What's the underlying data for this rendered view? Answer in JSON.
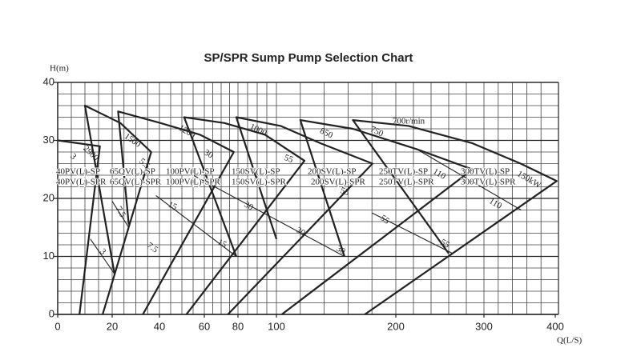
{
  "chart_data": {
    "type": "pump-selection",
    "title": "SP/SPR Sump Pump Selection Chart",
    "y_label": "H(m)",
    "x_label": "Q(L/S)",
    "xlim": [
      0,
      400
    ],
    "ylim": [
      0,
      40
    ],
    "xticks": [
      0,
      20,
      40,
      60,
      80,
      100,
      200,
      300,
      400
    ],
    "yticks": [
      0,
      10,
      20,
      30,
      40
    ],
    "xgrid": [
      5,
      10,
      15,
      20,
      25,
      30,
      35,
      40,
      45,
      50,
      55,
      60,
      65,
      70,
      75,
      80,
      85,
      90,
      95,
      100,
      120,
      140,
      160,
      180,
      200,
      220,
      240,
      260,
      280,
      300,
      320,
      340,
      360,
      380
    ],
    "ygrid": [
      2,
      4,
      6,
      8,
      10,
      12,
      14,
      16,
      18,
      20,
      22,
      24,
      26,
      28,
      30,
      32,
      34,
      36,
      38
    ],
    "grid": true,
    "color": "#222222",
    "series": [
      {
        "names": [
          "40PV(L)-SP",
          "40PV(L)-SPR"
        ],
        "x": [
          0,
          15.5,
          8
        ],
        "y": [
          30,
          29,
          0
        ]
      },
      {
        "names": [
          "65QV(L)-SP",
          "65QV(L)-SPR"
        ],
        "x": [
          21,
          10,
          23.5,
          36.5,
          16.5
        ],
        "y": [
          7,
          36,
          33,
          28,
          0
        ]
      },
      {
        "names": [
          "100PV(L)-SP",
          "100PV(L)-SPR"
        ],
        "x": [
          27,
          22.5,
          40.5,
          58,
          77.5,
          33
        ],
        "y": [
          15.5,
          35,
          33,
          31,
          28,
          0
        ]
      },
      {
        "names": [
          "150SV(L)-SP",
          "150SV(L)-SPR"
        ],
        "x": [
          79,
          51,
          72,
          94,
          123.5,
          52
        ],
        "y": [
          10,
          34,
          33,
          31,
          26.5,
          0
        ]
      },
      {
        "names": [
          "200SV(L)-SP",
          "200SV(L)-SPR"
        ],
        "x": [
          100,
          79,
          103.5,
          137,
          180.5,
          74
        ],
        "y": [
          13,
          34,
          32.5,
          29.5,
          26,
          0
        ]
      },
      {
        "names": [
          "250TV(L)-SP",
          "250TV(L)-SPR"
        ],
        "x": [
          157,
          120,
          164,
          223.5,
          287,
          104.5
        ],
        "y": [
          10,
          33.5,
          32,
          28.5,
          25,
          0
        ]
      },
      {
        "names": [
          "300TV(L)-SP",
          "300TV(L)-SPR"
        ],
        "x": [
          260,
          164,
          214.5,
          287,
          351.5,
          402,
          174
        ],
        "y": [
          10.5,
          33.5,
          32.5,
          29.5,
          26,
          23,
          0
        ]
      }
    ],
    "power_lines": [
      {
        "x": [
          12,
          21
        ],
        "y": [
          13,
          7
        ]
      },
      {
        "x": [
          20,
          27
        ],
        "y": [
          19.5,
          15
        ]
      },
      {
        "x": [
          38.5,
          79
        ],
        "y": [
          20.5,
          10
        ]
      },
      {
        "x": [
          55,
          157
        ],
        "y": [
          24,
          10
        ]
      },
      {
        "x": [
          180,
          264.5
        ],
        "y": [
          17.5,
          10.5
        ]
      },
      {
        "x": [
          223.5,
          352
        ],
        "y": [
          28.5,
          18
        ]
      }
    ],
    "speed_labels": [
      "2900",
      "1500",
      "1200",
      "1000",
      "850",
      "750",
      "700r/min"
    ],
    "power_labels": [
      "3",
      "5.5",
      "30",
      "55",
      "55",
      "110",
      "150kW",
      "7.5",
      "3",
      "7.5",
      "15",
      "15",
      "30",
      "30",
      "30",
      "55",
      "55",
      "110"
    ]
  }
}
